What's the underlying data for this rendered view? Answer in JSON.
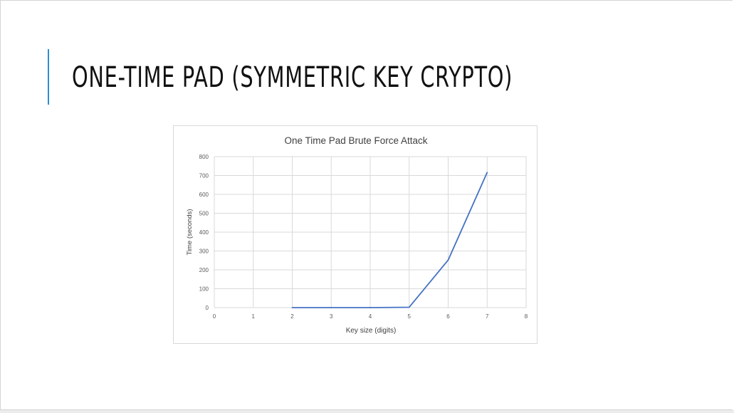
{
  "slide": {
    "title": "ONE-TIME PAD (SYMMETRIC KEY CRYPTO)",
    "accent_color": "#2e8fd0"
  },
  "chart_data": {
    "type": "line",
    "title": "One Time Pad Brute Force Attack",
    "xlabel": "Key size (digits)",
    "ylabel": "Time (seconds)",
    "xlim": [
      0,
      8
    ],
    "ylim": [
      0,
      800
    ],
    "x_ticks": [
      0,
      1,
      2,
      3,
      4,
      5,
      6,
      7,
      8
    ],
    "y_ticks": [
      0,
      100,
      200,
      300,
      400,
      500,
      600,
      700,
      800
    ],
    "grid": true,
    "legend": false,
    "series": [
      {
        "color": "#4472c4",
        "x": [
          2,
          3,
          4,
          5,
          6,
          7
        ],
        "y": [
          0,
          0,
          0,
          2,
          252,
          716
        ]
      }
    ]
  }
}
